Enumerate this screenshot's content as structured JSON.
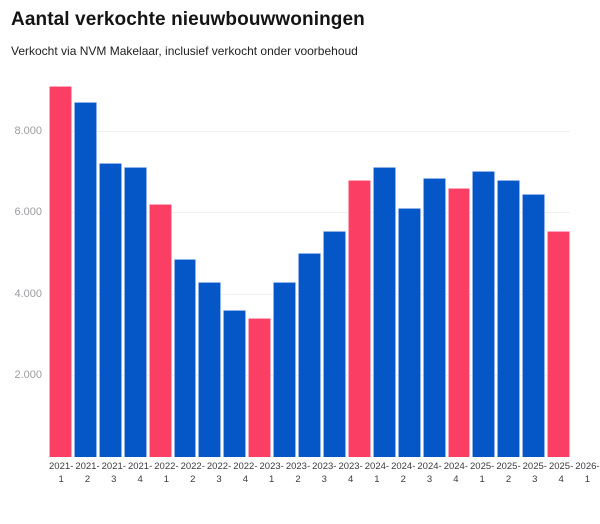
{
  "header": {
    "title": "Aantal verkochte nieuwbouwwoningen",
    "subtitle": "Verkocht via NVM Makelaar, inclusief verkocht onder voorbehoud"
  },
  "chart_data": {
    "type": "bar",
    "title": "Aantal verkochte nieuwbouwwoningen",
    "subtitle": "Verkocht via NVM Makelaar, inclusief verkocht onder voorbehoud",
    "categories": [
      "2021-1",
      "2021-2",
      "2021-3",
      "2021-4",
      "2022-1",
      "2022-2",
      "2022-3",
      "2022-4",
      "2023-1",
      "2023-2",
      "2023-3",
      "2023-4",
      "2024-1",
      "2024-2",
      "2024-3",
      "2024-4",
      "2025-1",
      "2025-2",
      "2025-3",
      "2025-4",
      "2026-1"
    ],
    "values": [
      9100,
      8700,
      7200,
      7100,
      6200,
      4850,
      4300,
      3600,
      3400,
      4300,
      5000,
      5550,
      6800,
      7100,
      6100,
      6850,
      6600,
      7000,
      6800,
      6450,
      5550
    ],
    "highlighted_categories": [
      "2021-1",
      "2022-1",
      "2023-1",
      "2024-1",
      "2025-1",
      "2026-1"
    ],
    "colors": {
      "bar_default": "#0556C7",
      "bar_highlight": "#FB3E63",
      "gridline": "#eff0f1",
      "ytick_text": "#9b9da1",
      "xtick_text": "#3a3c40"
    },
    "yticks": [
      {
        "value": 2000,
        "label": "2.000"
      },
      {
        "value": 4000,
        "label": "4.000"
      },
      {
        "value": 6000,
        "label": "6.000"
      },
      {
        "value": 8000,
        "label": "8.000"
      }
    ],
    "ylim": [
      0,
      9340
    ],
    "xlabel": "",
    "ylabel": "",
    "grid": true,
    "legend": "none"
  }
}
